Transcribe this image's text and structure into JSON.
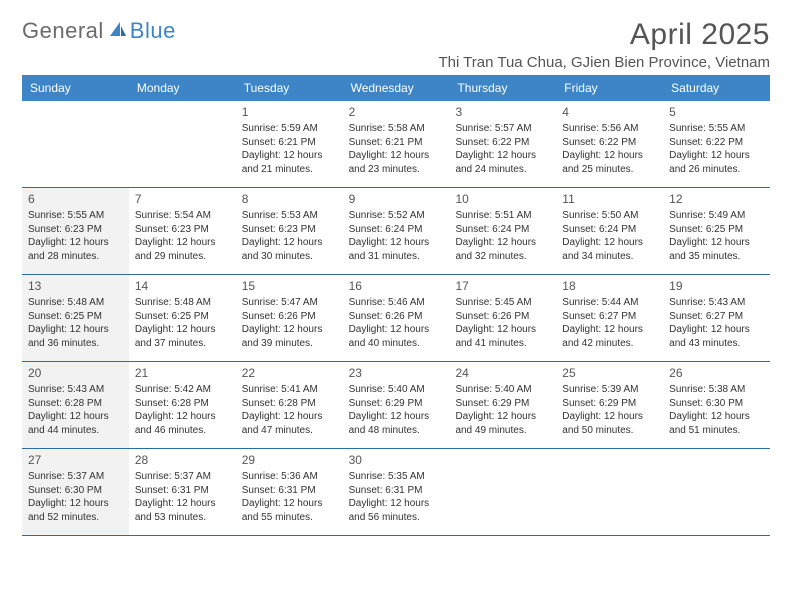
{
  "logo": {
    "text1": "General",
    "text2": "Blue"
  },
  "title": "April 2025",
  "location": "Thi Tran Tua Chua, GJien Bien Province, Vietnam",
  "colors": {
    "header_bg": "#3d85c6",
    "header_text": "#ffffff",
    "rule": "#2f6aa0",
    "shade": "#f2f2f2",
    "body_text": "#333333",
    "title_text": "#555555"
  },
  "day_headers": [
    "Sunday",
    "Monday",
    "Tuesday",
    "Wednesday",
    "Thursday",
    "Friday",
    "Saturday"
  ],
  "weeks": [
    [
      {
        "empty": true
      },
      {
        "empty": true
      },
      {
        "day": "1",
        "sunrise": "Sunrise: 5:59 AM",
        "sunset": "Sunset: 6:21 PM",
        "daylight": "Daylight: 12 hours and 21 minutes."
      },
      {
        "day": "2",
        "sunrise": "Sunrise: 5:58 AM",
        "sunset": "Sunset: 6:21 PM",
        "daylight": "Daylight: 12 hours and 23 minutes."
      },
      {
        "day": "3",
        "sunrise": "Sunrise: 5:57 AM",
        "sunset": "Sunset: 6:22 PM",
        "daylight": "Daylight: 12 hours and 24 minutes."
      },
      {
        "day": "4",
        "sunrise": "Sunrise: 5:56 AM",
        "sunset": "Sunset: 6:22 PM",
        "daylight": "Daylight: 12 hours and 25 minutes."
      },
      {
        "day": "5",
        "sunrise": "Sunrise: 5:55 AM",
        "sunset": "Sunset: 6:22 PM",
        "daylight": "Daylight: 12 hours and 26 minutes."
      }
    ],
    [
      {
        "day": "6",
        "shade": true,
        "sunrise": "Sunrise: 5:55 AM",
        "sunset": "Sunset: 6:23 PM",
        "daylight": "Daylight: 12 hours and 28 minutes."
      },
      {
        "day": "7",
        "sunrise": "Sunrise: 5:54 AM",
        "sunset": "Sunset: 6:23 PM",
        "daylight": "Daylight: 12 hours and 29 minutes."
      },
      {
        "day": "8",
        "sunrise": "Sunrise: 5:53 AM",
        "sunset": "Sunset: 6:23 PM",
        "daylight": "Daylight: 12 hours and 30 minutes."
      },
      {
        "day": "9",
        "sunrise": "Sunrise: 5:52 AM",
        "sunset": "Sunset: 6:24 PM",
        "daylight": "Daylight: 12 hours and 31 minutes."
      },
      {
        "day": "10",
        "sunrise": "Sunrise: 5:51 AM",
        "sunset": "Sunset: 6:24 PM",
        "daylight": "Daylight: 12 hours and 32 minutes."
      },
      {
        "day": "11",
        "sunrise": "Sunrise: 5:50 AM",
        "sunset": "Sunset: 6:24 PM",
        "daylight": "Daylight: 12 hours and 34 minutes."
      },
      {
        "day": "12",
        "sunrise": "Sunrise: 5:49 AM",
        "sunset": "Sunset: 6:25 PM",
        "daylight": "Daylight: 12 hours and 35 minutes."
      }
    ],
    [
      {
        "day": "13",
        "shade": true,
        "sunrise": "Sunrise: 5:48 AM",
        "sunset": "Sunset: 6:25 PM",
        "daylight": "Daylight: 12 hours and 36 minutes."
      },
      {
        "day": "14",
        "sunrise": "Sunrise: 5:48 AM",
        "sunset": "Sunset: 6:25 PM",
        "daylight": "Daylight: 12 hours and 37 minutes."
      },
      {
        "day": "15",
        "sunrise": "Sunrise: 5:47 AM",
        "sunset": "Sunset: 6:26 PM",
        "daylight": "Daylight: 12 hours and 39 minutes."
      },
      {
        "day": "16",
        "sunrise": "Sunrise: 5:46 AM",
        "sunset": "Sunset: 6:26 PM",
        "daylight": "Daylight: 12 hours and 40 minutes."
      },
      {
        "day": "17",
        "sunrise": "Sunrise: 5:45 AM",
        "sunset": "Sunset: 6:26 PM",
        "daylight": "Daylight: 12 hours and 41 minutes."
      },
      {
        "day": "18",
        "sunrise": "Sunrise: 5:44 AM",
        "sunset": "Sunset: 6:27 PM",
        "daylight": "Daylight: 12 hours and 42 minutes."
      },
      {
        "day": "19",
        "sunrise": "Sunrise: 5:43 AM",
        "sunset": "Sunset: 6:27 PM",
        "daylight": "Daylight: 12 hours and 43 minutes."
      }
    ],
    [
      {
        "day": "20",
        "shade": true,
        "sunrise": "Sunrise: 5:43 AM",
        "sunset": "Sunset: 6:28 PM",
        "daylight": "Daylight: 12 hours and 44 minutes."
      },
      {
        "day": "21",
        "sunrise": "Sunrise: 5:42 AM",
        "sunset": "Sunset: 6:28 PM",
        "daylight": "Daylight: 12 hours and 46 minutes."
      },
      {
        "day": "22",
        "sunrise": "Sunrise: 5:41 AM",
        "sunset": "Sunset: 6:28 PM",
        "daylight": "Daylight: 12 hours and 47 minutes."
      },
      {
        "day": "23",
        "sunrise": "Sunrise: 5:40 AM",
        "sunset": "Sunset: 6:29 PM",
        "daylight": "Daylight: 12 hours and 48 minutes."
      },
      {
        "day": "24",
        "sunrise": "Sunrise: 5:40 AM",
        "sunset": "Sunset: 6:29 PM",
        "daylight": "Daylight: 12 hours and 49 minutes."
      },
      {
        "day": "25",
        "sunrise": "Sunrise: 5:39 AM",
        "sunset": "Sunset: 6:29 PM",
        "daylight": "Daylight: 12 hours and 50 minutes."
      },
      {
        "day": "26",
        "sunrise": "Sunrise: 5:38 AM",
        "sunset": "Sunset: 6:30 PM",
        "daylight": "Daylight: 12 hours and 51 minutes."
      }
    ],
    [
      {
        "day": "27",
        "shade": true,
        "sunrise": "Sunrise: 5:37 AM",
        "sunset": "Sunset: 6:30 PM",
        "daylight": "Daylight: 12 hours and 52 minutes."
      },
      {
        "day": "28",
        "sunrise": "Sunrise: 5:37 AM",
        "sunset": "Sunset: 6:31 PM",
        "daylight": "Daylight: 12 hours and 53 minutes."
      },
      {
        "day": "29",
        "sunrise": "Sunrise: 5:36 AM",
        "sunset": "Sunset: 6:31 PM",
        "daylight": "Daylight: 12 hours and 55 minutes."
      },
      {
        "day": "30",
        "sunrise": "Sunrise: 5:35 AM",
        "sunset": "Sunset: 6:31 PM",
        "daylight": "Daylight: 12 hours and 56 minutes."
      },
      {
        "empty": true
      },
      {
        "empty": true
      },
      {
        "empty": true
      }
    ]
  ]
}
